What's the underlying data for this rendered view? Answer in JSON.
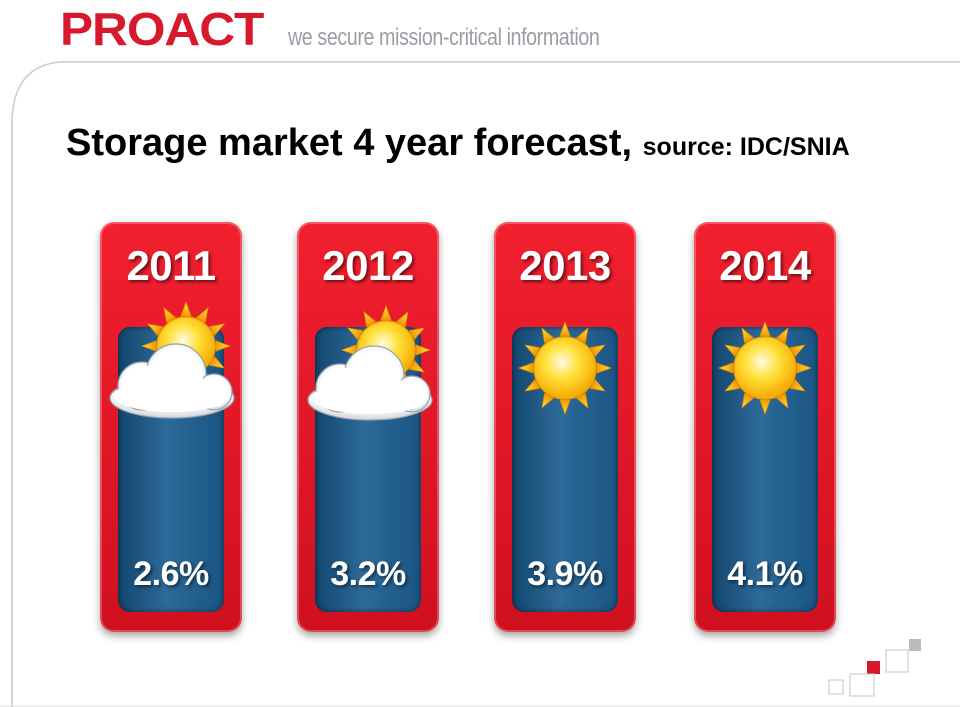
{
  "header": {
    "logo": "PROACT",
    "tagline": "we secure mission-critical information"
  },
  "title": {
    "main": "Storage market 4 year forecast,",
    "source": "source: IDC/SNIA"
  },
  "forecasts": [
    {
      "year": "2011",
      "growth": "2.6%",
      "weather_icon": "partly-cloudy-icon"
    },
    {
      "year": "2012",
      "growth": "3.2%",
      "weather_icon": "partly-cloudy-icon"
    },
    {
      "year": "2013",
      "growth": "3.9%",
      "weather_icon": "sun-icon"
    },
    {
      "year": "2014",
      "growth": "4.1%",
      "weather_icon": "sun-icon"
    }
  ],
  "colors": {
    "brand_red": "#d7192d",
    "card_red": "#e8192a",
    "panel_blue": "#1f5a87",
    "sun_yellow": "#ffd21a"
  }
}
